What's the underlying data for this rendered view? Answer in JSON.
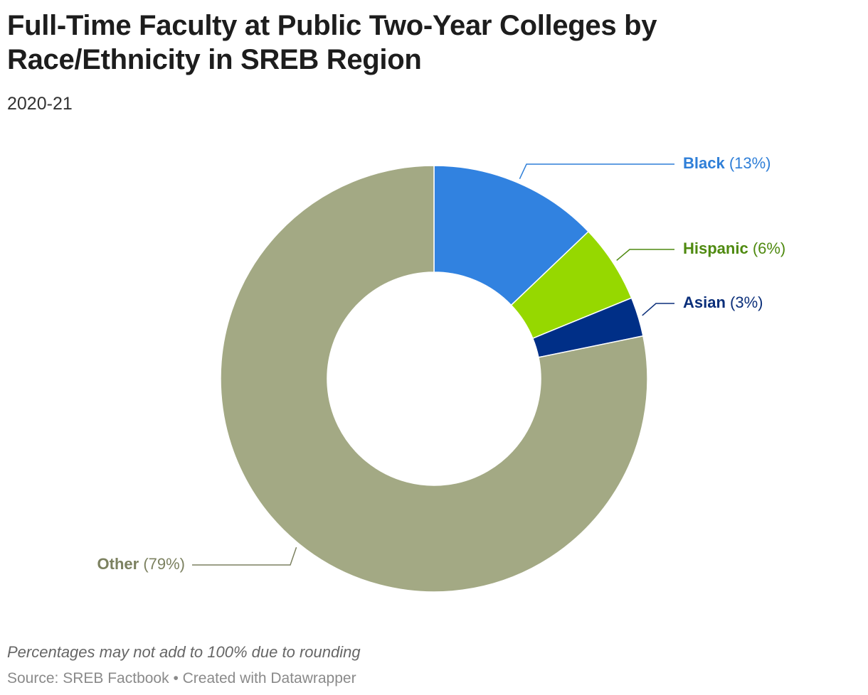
{
  "title": "Full-Time Faculty at Public Two-Year Colleges by Race/Ethnicity in SREB Region",
  "subtitle": "2020-21",
  "footnote": "Percentages may not add to 100% due to rounding",
  "source": "Source: SREB Factbook • Created with Datawrapper",
  "chart_data": {
    "type": "pie",
    "variant": "donut",
    "title": "Full-Time Faculty at Public Two-Year Colleges by Race/Ethnicity in SREB Region",
    "subtitle": "2020-21",
    "slices": [
      {
        "name": "Black",
        "value": 13,
        "label": "(13%)",
        "color": "#3182e0",
        "label_color": "#2f7fd8"
      },
      {
        "name": "Hispanic",
        "value": 6,
        "label": "(6%)",
        "color": "#96d800",
        "label_color": "#4f8a10"
      },
      {
        "name": "Asian",
        "value": 3,
        "label": "(3%)",
        "color": "#002f87",
        "label_color": "#0b2f7a"
      },
      {
        "name": "Other",
        "value": 79,
        "label": "(79%)",
        "color": "#a3a984",
        "label_color": "#7c8160"
      }
    ]
  }
}
